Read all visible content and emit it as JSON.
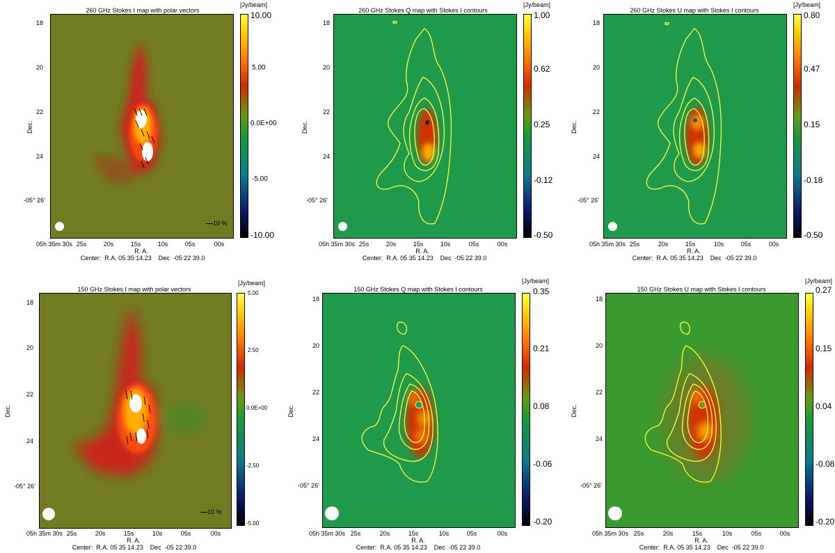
{
  "panels": [
    {
      "title": "260 GHz Stokes I map with polar vectors",
      "ylabel": "Dec.",
      "xlabel": "R. A.",
      "center": "Center:  R.A. 05 35 14.23    Dec  -05 22 39.0",
      "yticks": [
        "18",
        "20",
        "22",
        "24",
        "-05° 26'"
      ],
      "xticks": [
        "05h 35m 30s",
        "25s",
        "20s",
        "15s",
        "10s",
        "05s",
        "00s"
      ],
      "cbar_unit": "[Jy/beam]",
      "cbar_ticks": [
        "10.00",
        "5.00",
        "0.0E+00",
        "-5.00",
        "-10.00"
      ],
      "scale": "10 %",
      "stokes": "I"
    },
    {
      "title": "260 GHz Stokes Q map with Stokes I contours",
      "ylabel": "Dec.",
      "xlabel": "R. A.",
      "center": "Center:  R.A. 05 35 14.23    Dec  -05 22 39.0",
      "yticks": [
        "18",
        "20",
        "22",
        "24",
        "-05° 26'"
      ],
      "xticks": [
        "05h 35m 30s",
        "25s",
        "20s",
        "15s",
        "10s",
        "05s",
        "00s"
      ],
      "cbar_unit": "[Jy/beam]",
      "cbar_ticks": [
        "1.00",
        "0.62",
        "0.25",
        "-0.12",
        "-0.50"
      ],
      "stokes": "Q"
    },
    {
      "title": "260 GHz Stokes U map with Stokes I contours",
      "ylabel": "Dec.",
      "xlabel": "R. A.",
      "center": "Center:  R.A. 05 35 14.23    Dec  -05 22 39.0",
      "yticks": [
        "18",
        "20",
        "22",
        "24",
        "-05° 26'"
      ],
      "xticks": [
        "05h 35m 30s",
        "25s",
        "20s",
        "15s",
        "10s",
        "05s",
        "00s"
      ],
      "cbar_unit": "[Jy/beam]",
      "cbar_ticks": [
        "0.80",
        "0.47",
        "0.15",
        "-0.18",
        "-0.50"
      ],
      "stokes": "U"
    },
    {
      "title": "150 GHz Stokes I map with polar vectors",
      "ylabel": "Dec.",
      "xlabel": "R. A.",
      "center": "Center:  R.A. 05 35 14.23    Dec  -05 22 39.0",
      "yticks": [
        "18",
        "20",
        "22",
        "24",
        "-05° 26'"
      ],
      "xticks": [
        "05h 35m 30s",
        "25s",
        "20s",
        "15s",
        "10s",
        "05s",
        "00s"
      ],
      "cbar_unit": "[Jy/beam]",
      "cbar_ticks": [
        "5.00",
        "2.50",
        "0.0E+00",
        "-2.50",
        "-5.00"
      ],
      "scale": "10 %",
      "stokes": "I"
    },
    {
      "title": "150 GHz Stokes Q map with Stokes I contours",
      "ylabel": "Dec.",
      "xlabel": "R. A.",
      "center": "Center:  R.A. 05 35 14.23    Dec  -05 22 39.0",
      "yticks": [
        "18",
        "20",
        "22",
        "24",
        "-05° 26'"
      ],
      "xticks": [
        "05h 35m 30s",
        "25s",
        "20s",
        "15s",
        "10s",
        "05s",
        "00s"
      ],
      "cbar_unit": "[Jy/beam]",
      "cbar_ticks": [
        "0.35",
        "0.21",
        "0.08",
        "-0.06",
        "-0.20"
      ],
      "stokes": "Q"
    },
    {
      "title": "150 GHz Stokes U map with Stokes I contours",
      "ylabel": "Dec.",
      "xlabel": "R. A.",
      "center": "Center:  R.A. 05 35 14.23    Dec  -05 22 39.0",
      "yticks": [
        "18",
        "20",
        "22",
        "24",
        "-05° 26'"
      ],
      "xticks": [
        "05h 35m 30s",
        "25s",
        "20s",
        "15s",
        "10s",
        "05s",
        "00s"
      ],
      "cbar_unit": "[Jy/beam]",
      "cbar_ticks": [
        "0.27",
        "0.15",
        "0.04",
        "-0.08",
        "-0.20"
      ],
      "stokes": "U"
    }
  ]
}
